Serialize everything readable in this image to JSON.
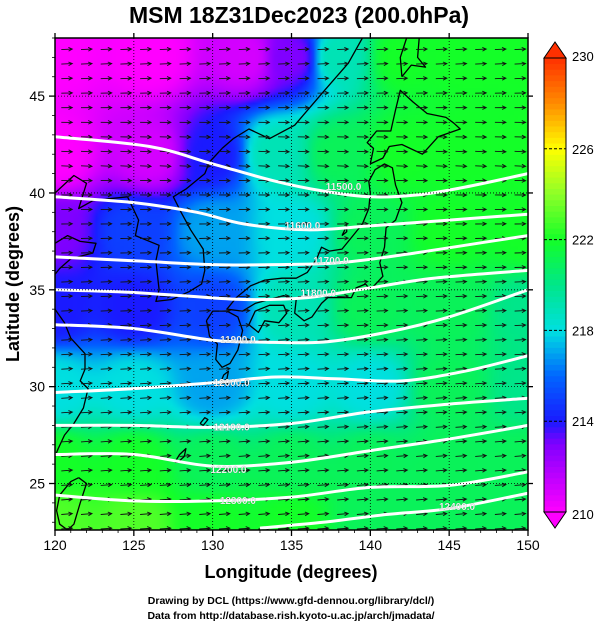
{
  "chart_data": {
    "type": "heatmap",
    "title": "MSM 18Z31Dec2023 (200.0hPa)",
    "xlabel": "Longitude (degrees)",
    "ylabel": "Latitude  (degrees)",
    "xlim": [
      120,
      150
    ],
    "ylim": [
      22.6,
      48
    ],
    "x_ticks": [
      120,
      125,
      130,
      135,
      140,
      145,
      150
    ],
    "y_ticks": [
      25,
      30,
      35,
      40,
      45
    ],
    "colorbar": {
      "label_values": [
        210,
        214,
        218,
        222,
        226,
        230
      ],
      "range": [
        210,
        230
      ],
      "colors": {
        "210": "#ff00ff",
        "213": "#8000ff",
        "214": "#1a1aff",
        "216": "#0066ff",
        "218": "#00e0e0",
        "220": "#00e68a",
        "222": "#14ff28",
        "224": "#8cff28",
        "226": "#ffff00",
        "228": "#ff8c00",
        "230": "#ff3000"
      }
    },
    "contour_labels": [
      {
        "text": "11500.0",
        "lon": 138.3,
        "lat": 40.3
      },
      {
        "text": "11600.0",
        "lon": 135.7,
        "lat": 38.3
      },
      {
        "text": "11700.0",
        "lon": 137.5,
        "lat": 36.5
      },
      {
        "text": "11800.0",
        "lon": 136.7,
        "lat": 34.8
      },
      {
        "text": "11900.0",
        "lon": 131.6,
        "lat": 32.4
      },
      {
        "text": "12000.0",
        "lon": 131.2,
        "lat": 30.2
      },
      {
        "text": "12100.0",
        "lon": 131.2,
        "lat": 27.9
      },
      {
        "text": "12200.0",
        "lon": 131.0,
        "lat": 25.7
      },
      {
        "text": "12300.0",
        "lon": 131.6,
        "lat": 24.1
      },
      {
        "text": "12400.0",
        "lon": 145.5,
        "lat": 23.8
      }
    ],
    "contours": [
      {
        "level": 11500,
        "points": [
          [
            120,
            42.9
          ],
          [
            126,
            42.4
          ],
          [
            130,
            41.5
          ],
          [
            134,
            40.6
          ],
          [
            137,
            40.1
          ],
          [
            140,
            39.8
          ],
          [
            143,
            39.9
          ],
          [
            146,
            40.3
          ],
          [
            150,
            41.0
          ]
        ]
      },
      {
        "level": 11600,
        "points": [
          [
            120,
            39.8
          ],
          [
            125,
            39.5
          ],
          [
            129,
            39.0
          ],
          [
            132,
            38.4
          ],
          [
            136,
            38.1
          ],
          [
            140,
            38.3
          ],
          [
            145,
            38.6
          ],
          [
            150,
            38.9
          ]
        ]
      },
      {
        "level": 11700,
        "points": [
          [
            120,
            36.7
          ],
          [
            125,
            36.5
          ],
          [
            130,
            36.3
          ],
          [
            134,
            36.3
          ],
          [
            138,
            36.4
          ],
          [
            142,
            36.8
          ],
          [
            146,
            37.3
          ],
          [
            150,
            37.8
          ]
        ]
      },
      {
        "level": 11800,
        "points": [
          [
            120,
            35.0
          ],
          [
            124,
            34.9
          ],
          [
            128,
            34.7
          ],
          [
            132,
            34.5
          ],
          [
            136,
            34.6
          ],
          [
            140,
            35.1
          ],
          [
            144,
            35.6
          ],
          [
            150,
            36.0
          ]
        ]
      },
      {
        "level": 11900,
        "points": [
          [
            120,
            33.2
          ],
          [
            125,
            33.0
          ],
          [
            130,
            32.4
          ],
          [
            133,
            32.3
          ],
          [
            137,
            32.3
          ],
          [
            141,
            32.8
          ],
          [
            145,
            33.6
          ],
          [
            150,
            35.0
          ]
        ]
      },
      {
        "level": 12000,
        "points": [
          [
            120,
            29.7
          ],
          [
            125,
            29.9
          ],
          [
            130,
            30.2
          ],
          [
            134,
            30.5
          ],
          [
            138,
            30.4
          ],
          [
            142,
            30.3
          ],
          [
            146,
            30.8
          ],
          [
            150,
            31.6
          ]
        ]
      },
      {
        "level": 12100,
        "points": [
          [
            120,
            28.0
          ],
          [
            125,
            28.0
          ],
          [
            130,
            27.9
          ],
          [
            135,
            28.1
          ],
          [
            140,
            28.7
          ],
          [
            145,
            29.1
          ],
          [
            150,
            29.4
          ]
        ]
      },
      {
        "level": 12200,
        "points": [
          [
            120,
            26.5
          ],
          [
            125,
            26.5
          ],
          [
            130,
            25.9
          ],
          [
            135,
            26.1
          ],
          [
            140,
            26.7
          ],
          [
            145,
            27.3
          ],
          [
            150,
            28.0
          ]
        ]
      },
      {
        "level": 12300,
        "points": [
          [
            120,
            24.4
          ],
          [
            125,
            24.1
          ],
          [
            130,
            24.1
          ],
          [
            135,
            24.3
          ],
          [
            140,
            24.8
          ],
          [
            145,
            24.9
          ],
          [
            150,
            25.6
          ]
        ]
      },
      {
        "level": 12400,
        "points": [
          [
            133,
            22.7
          ],
          [
            137,
            23.0
          ],
          [
            141,
            23.4
          ],
          [
            145,
            23.7
          ],
          [
            150,
            24.5
          ]
        ]
      }
    ],
    "temperature_field": {
      "description_units": "K",
      "nodes": [
        {
          "lon": 120,
          "lat": 47,
          "value": 210
        },
        {
          "lon": 126,
          "lat": 47,
          "value": 210
        },
        {
          "lon": 132,
          "lat": 47,
          "value": 211
        },
        {
          "lon": 135,
          "lat": 47,
          "value": 213
        },
        {
          "lon": 138,
          "lat": 47,
          "value": 219
        },
        {
          "lon": 142,
          "lat": 47,
          "value": 222
        },
        {
          "lon": 146,
          "lat": 47,
          "value": 222
        },
        {
          "lon": 150,
          "lat": 47,
          "value": 222
        },
        {
          "lon": 120,
          "lat": 42,
          "value": 210
        },
        {
          "lon": 126,
          "lat": 42,
          "value": 211
        },
        {
          "lon": 130,
          "lat": 42,
          "value": 214
        },
        {
          "lon": 134,
          "lat": 42,
          "value": 219
        },
        {
          "lon": 138,
          "lat": 42,
          "value": 221
        },
        {
          "lon": 142,
          "lat": 42,
          "value": 222
        },
        {
          "lon": 146,
          "lat": 42,
          "value": 222
        },
        {
          "lon": 150,
          "lat": 42,
          "value": 222
        },
        {
          "lon": 120,
          "lat": 38,
          "value": 213
        },
        {
          "lon": 125,
          "lat": 38,
          "value": 215
        },
        {
          "lon": 130,
          "lat": 38,
          "value": 217
        },
        {
          "lon": 135,
          "lat": 38,
          "value": 218
        },
        {
          "lon": 140,
          "lat": 38,
          "value": 221
        },
        {
          "lon": 145,
          "lat": 38,
          "value": 222
        },
        {
          "lon": 150,
          "lat": 38,
          "value": 222
        },
        {
          "lon": 120,
          "lat": 34,
          "value": 214
        },
        {
          "lon": 125,
          "lat": 34,
          "value": 214
        },
        {
          "lon": 130,
          "lat": 34,
          "value": 215
        },
        {
          "lon": 135,
          "lat": 34,
          "value": 219
        },
        {
          "lon": 140,
          "lat": 34,
          "value": 221
        },
        {
          "lon": 145,
          "lat": 34,
          "value": 221
        },
        {
          "lon": 150,
          "lat": 34,
          "value": 220
        },
        {
          "lon": 120,
          "lat": 30,
          "value": 218
        },
        {
          "lon": 125,
          "lat": 30,
          "value": 218
        },
        {
          "lon": 130,
          "lat": 30,
          "value": 217
        },
        {
          "lon": 135,
          "lat": 30,
          "value": 218
        },
        {
          "lon": 140,
          "lat": 30,
          "value": 218
        },
        {
          "lon": 145,
          "lat": 30,
          "value": 221
        },
        {
          "lon": 150,
          "lat": 30,
          "value": 220
        },
        {
          "lon": 120,
          "lat": 26,
          "value": 222
        },
        {
          "lon": 125,
          "lat": 26,
          "value": 222
        },
        {
          "lon": 130,
          "lat": 26,
          "value": 221
        },
        {
          "lon": 135,
          "lat": 26,
          "value": 221
        },
        {
          "lon": 140,
          "lat": 26,
          "value": 221
        },
        {
          "lon": 145,
          "lat": 26,
          "value": 221
        },
        {
          "lon": 150,
          "lat": 26,
          "value": 221
        },
        {
          "lon": 120,
          "lat": 23,
          "value": 223
        },
        {
          "lon": 125,
          "lat": 23,
          "value": 223
        },
        {
          "lon": 130,
          "lat": 23,
          "value": 222
        },
        {
          "lon": 135,
          "lat": 23,
          "value": 222
        },
        {
          "lon": 140,
          "lat": 23,
          "value": 221
        },
        {
          "lon": 145,
          "lat": 23,
          "value": 221
        },
        {
          "lon": 150,
          "lat": 23,
          "value": 221
        }
      ]
    },
    "wind_direction_by_lat": [
      {
        "lat": 46,
        "u": 1.0,
        "v": 0.05
      },
      {
        "lat": 42,
        "u": 1.0,
        "v": -0.05
      },
      {
        "lat": 38,
        "u": 1.0,
        "v": 0.02
      },
      {
        "lat": 34,
        "u": 1.0,
        "v": 0.05
      },
      {
        "lat": 30,
        "u": 1.0,
        "v": 0.06
      },
      {
        "lat": 26,
        "u": 1.0,
        "v": 0.07
      },
      {
        "lat": 23,
        "u": 1.0,
        "v": 0.08
      }
    ]
  },
  "credits": {
    "line1": "Drawing by DCL (https://www.gfd-dennou.org/library/dcl/)",
    "line2": "Data from http://database.rish.kyoto-u.ac.jp/arch/jmadata/"
  }
}
